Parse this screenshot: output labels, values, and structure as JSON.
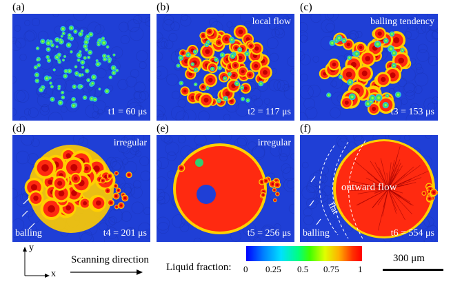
{
  "panels": [
    {
      "label": "(a)",
      "time": "t1 = 60 μs"
    },
    {
      "label": "(b)",
      "time": "t2 = 117 μs",
      "note": "local flow"
    },
    {
      "label": "(c)",
      "time": "t3 = 153 μs",
      "note": "balling tendency"
    },
    {
      "label": "(d)",
      "time": "t4 = 201 μs",
      "note": "irregular",
      "note2": "balling"
    },
    {
      "label": "(e)",
      "time": "t5 = 256 μs",
      "note": "irregular"
    },
    {
      "label": "(f)",
      "time": "t6 = 554 μs",
      "note": "outward flow",
      "note2": "balling",
      "note3": "flat"
    }
  ],
  "axes": {
    "y": "y",
    "x": "x"
  },
  "scanning": "Scanning direction",
  "legend": {
    "title": "Liquid fraction:",
    "ticks": [
      "0",
      "0.25",
      "0.5",
      "0.75",
      "1"
    ]
  },
  "scalebar": "300 μm",
  "colors": {
    "background": "#1f3fd6",
    "melt": "#e8100c"
  }
}
